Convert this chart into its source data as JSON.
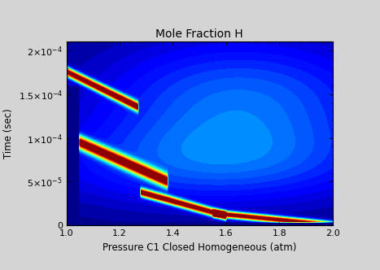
{
  "title": "Mole Fraction H",
  "xlabel": "Pressure C1 Closed Homogeneous (atm)",
  "ylabel": "Time (sec)",
  "xlim": [
    1.0,
    2.0
  ],
  "ylim": [
    0,
    0.00021
  ],
  "xticks": [
    1.0,
    1.2,
    1.4,
    1.6,
    1.8,
    2.0
  ],
  "yticks": [
    0,
    5e-05,
    0.0001,
    0.00015,
    0.0002
  ],
  "fig_bg_color": "#d4d4d4",
  "title_fontsize": 10,
  "label_fontsize": 8.5,
  "tick_fontsize": 8
}
